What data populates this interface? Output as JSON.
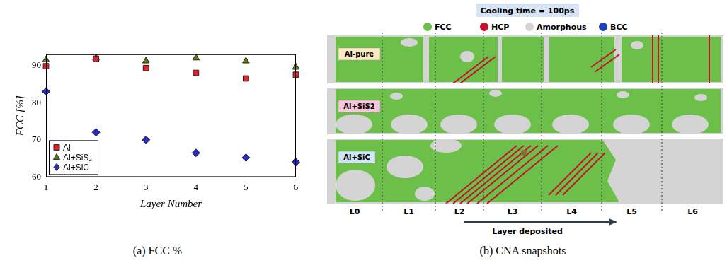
{
  "chart_data": {
    "type": "scatter",
    "caption": "(a) FCC %",
    "xlabel": "Layer Number",
    "ylabel": "FCC [%]",
    "x": [
      1,
      2,
      3,
      4,
      5,
      6
    ],
    "xlim": [
      1,
      6
    ],
    "xticks": [
      1,
      2,
      3,
      4,
      5,
      6
    ],
    "ylim": [
      60,
      93
    ],
    "yticks": [
      60,
      70,
      80,
      90
    ],
    "grid": false,
    "legend": "lower left",
    "series": [
      {
        "name": "Al",
        "color": "#e8202a",
        "marker": "square",
        "values": [
          89.8,
          91.8,
          89.3,
          88.0,
          86.5,
          87.5
        ]
      },
      {
        "name": "Al+SiS₂",
        "color": "#5e7d10",
        "marker": "triangle",
        "values": [
          91.5,
          92.0,
          91.2,
          92.0,
          91.2,
          89.5
        ]
      },
      {
        "name": "Al+SiC",
        "color": "#2a2ac8",
        "marker": "diamond",
        "values": [
          83.0,
          72.0,
          70.0,
          66.5,
          65.2,
          64.0
        ]
      }
    ]
  },
  "snapshots": {
    "caption": "(b) CNA snapshots",
    "title": "Cooling time = 100ps",
    "legend": [
      {
        "name": "FCC",
        "color": "#6cc04a"
      },
      {
        "name": "HCP",
        "color": "#c8102e"
      },
      {
        "name": "Amorphous",
        "color": "#d4d4d4"
      },
      {
        "name": "BCC",
        "color": "#1f3fbf"
      }
    ],
    "rows": [
      "Al-pure",
      "Al+SiS2",
      "Al+SiC"
    ],
    "layers": [
      "L0",
      "L1",
      "L2",
      "L3",
      "L4",
      "L5",
      "L6"
    ],
    "arrow_label": "Layer deposited"
  }
}
